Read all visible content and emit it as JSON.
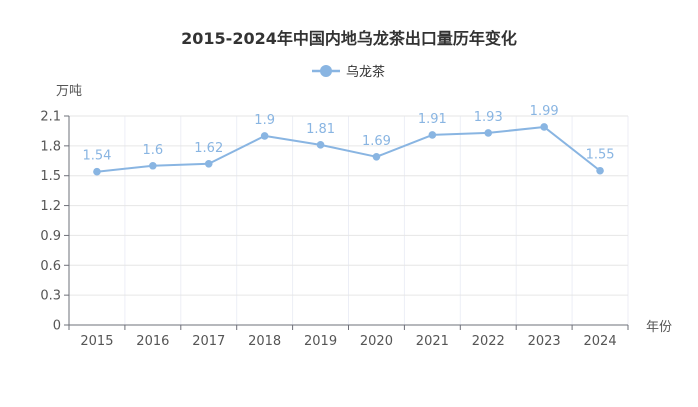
{
  "colors": {
    "series": "#89b5e2",
    "grid_h": "#e6e6e6",
    "grid_v": "#eceef6",
    "axis": "#6e7079",
    "text": "#333333",
    "label": "#555555"
  },
  "chart_data": {
    "type": "line",
    "title": "2015-2024年中国内地乌龙茶出口量历年变化",
    "xlabel": "年份",
    "ylabel": "万吨",
    "categories": [
      "2015",
      "2016",
      "2017",
      "2018",
      "2019",
      "2020",
      "2021",
      "2022",
      "2023",
      "2024"
    ],
    "series": [
      {
        "name": "乌龙茶",
        "values": [
          1.54,
          1.6,
          1.62,
          1.9,
          1.81,
          1.69,
          1.91,
          1.93,
          1.99,
          1.55
        ],
        "labels": [
          "1.54",
          "1.6",
          "1.62",
          "1.9",
          "1.81",
          "1.69",
          "1.91",
          "1.93",
          "1.99",
          "1.55"
        ]
      }
    ],
    "yticks": [
      "0",
      "0.3",
      "0.6",
      "0.9",
      "1.2",
      "1.5",
      "1.8",
      "2.1"
    ],
    "ylim": [
      0,
      2.1
    ],
    "grid": true,
    "legend": "top-center",
    "data_labels": true
  }
}
